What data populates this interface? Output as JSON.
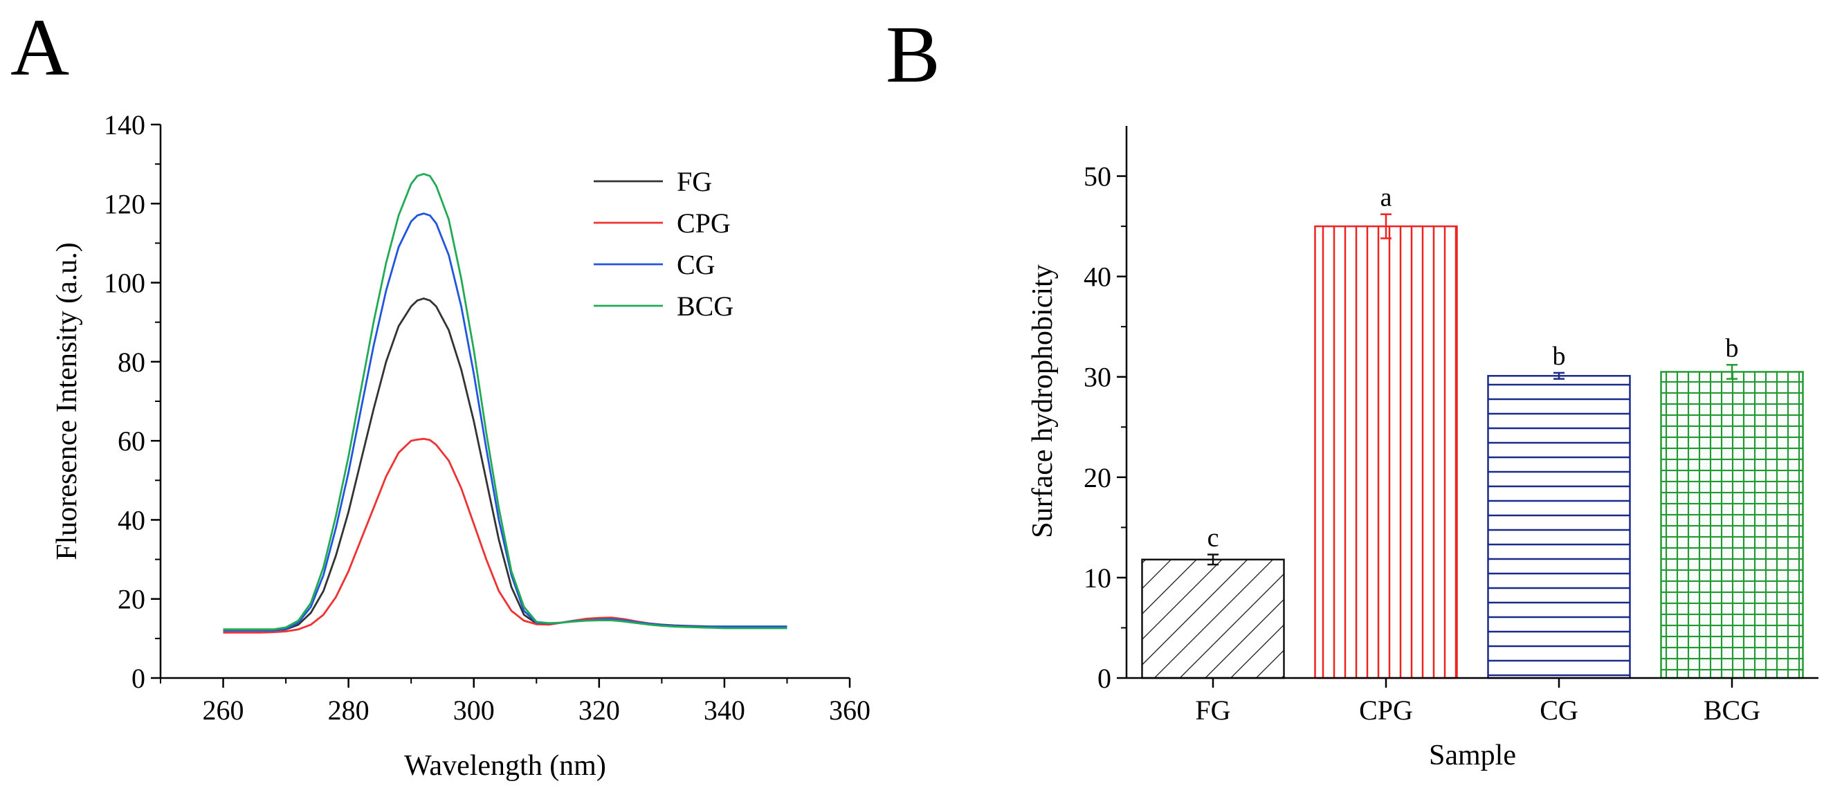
{
  "panels": {
    "A": {
      "letter": "A"
    },
    "B": {
      "letter": "B"
    }
  },
  "chart_data": [
    {
      "type": "line",
      "panel": "A",
      "title": "",
      "xlabel": "Wavelength (nm)",
      "ylabel": "Fluoresence Intensity (a.u.)",
      "xlim": [
        250,
        360
      ],
      "ylim": [
        0,
        140
      ],
      "xticks": [
        260,
        280,
        300,
        320,
        340,
        360
      ],
      "yticks": [
        0,
        20,
        40,
        60,
        80,
        100,
        120,
        140
      ],
      "grid": false,
      "legend_position": "top-right",
      "series": [
        {
          "name": "FG",
          "color": "#333333",
          "x": [
            260,
            262,
            264,
            266,
            268,
            270,
            272,
            274,
            276,
            278,
            280,
            282,
            284,
            286,
            288,
            290,
            291,
            292,
            293,
            294,
            296,
            298,
            300,
            302,
            304,
            306,
            308,
            310,
            312,
            314,
            316,
            318,
            320,
            322,
            324,
            326,
            328,
            330,
            332,
            334,
            336,
            338,
            340,
            342,
            344,
            346,
            348,
            350
          ],
          "y": [
            12,
            12,
            12,
            12,
            12,
            12.3,
            13.5,
            16.5,
            22,
            31,
            42,
            55,
            68,
            80,
            89,
            94,
            95.5,
            96,
            95.5,
            94,
            88,
            78,
            65,
            50,
            35,
            23,
            16,
            13.8,
            13.6,
            14,
            14.5,
            14.8,
            15,
            15.2,
            14.8,
            14.2,
            13.8,
            13.5,
            13.3,
            13.2,
            13.1,
            13,
            13,
            13,
            13,
            13,
            13,
            13
          ]
        },
        {
          "name": "CPG",
          "color": "#ee3333",
          "x": [
            260,
            262,
            264,
            266,
            268,
            270,
            272,
            274,
            276,
            278,
            280,
            282,
            284,
            286,
            288,
            290,
            291,
            292,
            293,
            294,
            296,
            298,
            300,
            302,
            304,
            306,
            308,
            310,
            312,
            314,
            316,
            318,
            320,
            322,
            324,
            326,
            328,
            330,
            332,
            334,
            336,
            338,
            340,
            342,
            344,
            346,
            348,
            350
          ],
          "y": [
            11.5,
            11.5,
            11.5,
            11.5,
            11.6,
            11.8,
            12.3,
            13.5,
            16,
            20.5,
            27,
            35,
            43,
            51,
            57,
            60,
            60.3,
            60.5,
            60.2,
            59,
            55,
            48,
            39,
            30,
            22,
            17,
            14.5,
            13.6,
            13.5,
            14,
            14.5,
            15,
            15.2,
            15.3,
            14.9,
            14.3,
            13.8,
            13.4,
            13.1,
            13,
            12.9,
            12.8,
            12.8,
            12.8,
            12.8,
            12.8,
            12.8,
            12.8
          ]
        },
        {
          "name": "CG",
          "color": "#2255dd",
          "x": [
            260,
            262,
            264,
            266,
            268,
            270,
            272,
            274,
            276,
            278,
            280,
            282,
            284,
            286,
            288,
            290,
            291,
            292,
            293,
            294,
            296,
            298,
            300,
            302,
            304,
            306,
            308,
            310,
            312,
            314,
            316,
            318,
            320,
            322,
            324,
            326,
            328,
            330,
            332,
            334,
            336,
            338,
            340,
            342,
            344,
            346,
            348,
            350
          ],
          "y": [
            12,
            12,
            12,
            12,
            12,
            12.4,
            14,
            18,
            26,
            38,
            52,
            68,
            84,
            98,
            109,
            115.5,
            117,
            117.5,
            117,
            115,
            107,
            94,
            77,
            58,
            40,
            26,
            17,
            14,
            13.8,
            14,
            14.4,
            14.6,
            14.8,
            14.9,
            14.6,
            14.1,
            13.7,
            13.4,
            13.2,
            13.1,
            13,
            13,
            13,
            13,
            13,
            13,
            13,
            13
          ]
        },
        {
          "name": "BCG",
          "color": "#22aa55",
          "x": [
            260,
            262,
            264,
            266,
            268,
            270,
            272,
            274,
            276,
            278,
            280,
            282,
            284,
            286,
            288,
            290,
            291,
            292,
            293,
            294,
            296,
            298,
            300,
            302,
            304,
            306,
            308,
            310,
            312,
            314,
            316,
            318,
            320,
            322,
            324,
            326,
            328,
            330,
            332,
            334,
            336,
            338,
            340,
            342,
            344,
            346,
            348,
            350
          ],
          "y": [
            12.3,
            12.3,
            12.3,
            12.3,
            12.3,
            12.8,
            14.5,
            19,
            28,
            41,
            56,
            73,
            90,
            105,
            117,
            125,
            127,
            127.5,
            127,
            124.5,
            116,
            101,
            83,
            62,
            43,
            27,
            18,
            14.2,
            13.9,
            14,
            14.3,
            14.5,
            14.6,
            14.6,
            14.3,
            13.9,
            13.5,
            13.2,
            13,
            12.9,
            12.8,
            12.7,
            12.6,
            12.6,
            12.6,
            12.6,
            12.6,
            12.6
          ]
        }
      ]
    },
    {
      "type": "bar",
      "panel": "B",
      "title": "",
      "xlabel": "Sample",
      "ylabel": "Surface hydrophobicity",
      "ylim": [
        0,
        55
      ],
      "yticks": [
        0,
        10,
        20,
        30,
        40,
        50
      ],
      "grid": false,
      "categories": [
        "FG",
        "CPG",
        "CG",
        "BCG"
      ],
      "values": [
        11.8,
        45.0,
        30.1,
        30.5
      ],
      "errors": [
        0.5,
        1.2,
        0.3,
        0.7
      ],
      "significance": [
        "c",
        "a",
        "b",
        "b"
      ],
      "colors": [
        "#111111",
        "#ee2222",
        "#1a2a8a",
        "#229933"
      ],
      "patterns": [
        "diagonal",
        "vertical",
        "horizontal",
        "grid"
      ]
    }
  ]
}
